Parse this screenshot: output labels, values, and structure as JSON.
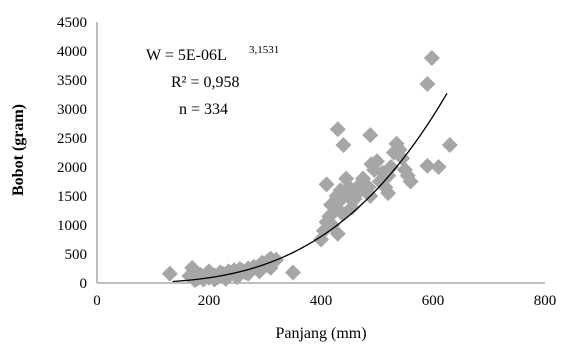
{
  "chart_data": {
    "type": "scatter",
    "xlabel": "Panjang (mm)",
    "ylabel": "Bobot (gram)",
    "xlim": [
      0,
      800
    ],
    "ylim": [
      0,
      4500
    ],
    "xticks": [
      "0",
      "200",
      "400",
      "600",
      "800"
    ],
    "yticks": [
      "0",
      "500",
      "1000",
      "1500",
      "2000",
      "2500",
      "3000",
      "3500",
      "4000",
      "4500"
    ],
    "grid": false,
    "marker_color": "#a6a6a6",
    "trend_color": "#000000",
    "annotation": {
      "eq_main": "W = 5E-06L",
      "eq_exp": "3,1531",
      "r2": "R² = 0,958",
      "n": "n = 334"
    },
    "trendline": {
      "a": 5e-06,
      "b": 3.1531,
      "x_range": [
        135,
        625
      ]
    },
    "points": [
      [
        130,
        160
      ],
      [
        170,
        260
      ],
      [
        165,
        120
      ],
      [
        175,
        50
      ],
      [
        180,
        80
      ],
      [
        185,
        140
      ],
      [
        190,
        60
      ],
      [
        195,
        110
      ],
      [
        200,
        90
      ],
      [
        205,
        150
      ],
      [
        210,
        130
      ],
      [
        215,
        100
      ],
      [
        220,
        180
      ],
      [
        225,
        160
      ],
      [
        230,
        140
      ],
      [
        235,
        200
      ],
      [
        240,
        170
      ],
      [
        245,
        220
      ],
      [
        250,
        190
      ],
      [
        255,
        240
      ],
      [
        260,
        210
      ],
      [
        265,
        180
      ],
      [
        270,
        250
      ],
      [
        275,
        230
      ],
      [
        280,
        280
      ],
      [
        285,
        260
      ],
      [
        290,
        300
      ],
      [
        295,
        350
      ],
      [
        300,
        330
      ],
      [
        305,
        380
      ],
      [
        310,
        420
      ],
      [
        320,
        400
      ],
      [
        350,
        180
      ],
      [
        200,
        200
      ],
      [
        210,
        60
      ],
      [
        230,
        70
      ],
      [
        250,
        100
      ],
      [
        270,
        160
      ],
      [
        290,
        200
      ],
      [
        310,
        260
      ],
      [
        400,
        750
      ],
      [
        405,
        900
      ],
      [
        410,
        1050
      ],
      [
        415,
        1150
      ],
      [
        418,
        1350
      ],
      [
        420,
        1000
      ],
      [
        425,
        1250
      ],
      [
        428,
        1500
      ],
      [
        430,
        850
      ],
      [
        432,
        1400
      ],
      [
        435,
        1600
      ],
      [
        438,
        1200
      ],
      [
        440,
        2380
      ],
      [
        445,
        1800
      ],
      [
        448,
        1500
      ],
      [
        450,
        1650
      ],
      [
        455,
        1300
      ],
      [
        460,
        1450
      ],
      [
        465,
        1550
      ],
      [
        470,
        1700
      ],
      [
        475,
        1800
      ],
      [
        480,
        1600
      ],
      [
        485,
        1650
      ],
      [
        488,
        1500
      ],
      [
        490,
        2050
      ],
      [
        495,
        1950
      ],
      [
        500,
        2100
      ],
      [
        505,
        1750
      ],
      [
        510,
        1900
      ],
      [
        515,
        1650
      ],
      [
        520,
        1850
      ],
      [
        525,
        2000
      ],
      [
        530,
        2250
      ],
      [
        535,
        2400
      ],
      [
        540,
        2300
      ],
      [
        545,
        2150
      ],
      [
        550,
        1950
      ],
      [
        555,
        1850
      ],
      [
        560,
        1750
      ],
      [
        488,
        2550
      ],
      [
        430,
        2650
      ],
      [
        410,
        1700
      ],
      [
        590,
        3430
      ],
      [
        598,
        3880
      ],
      [
        590,
        2020
      ],
      [
        610,
        2000
      ],
      [
        630,
        2380
      ],
      [
        520,
        1550
      ]
    ]
  }
}
